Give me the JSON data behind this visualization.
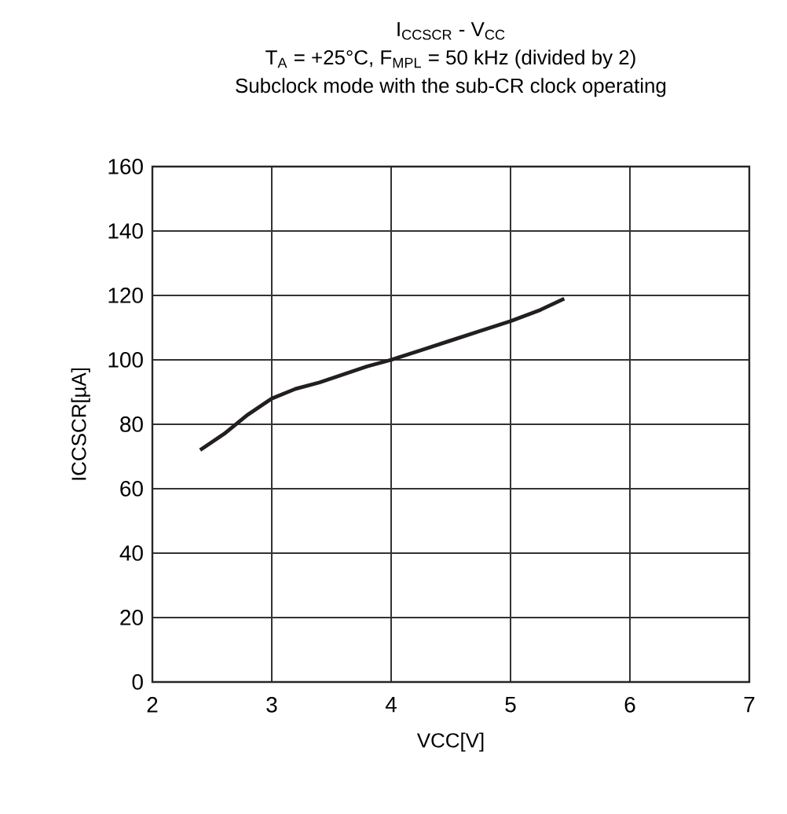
{
  "chart_data": {
    "type": "line",
    "title": "I$_{CCSCR}$ - V$_{CC}$",
    "subtitle": "T$_{A}$ = +25°C, F$_{MPL}$ = 50 kHz (divided by 2)",
    "annotations": [
      "Subclock mode with the sub-CR clock operating"
    ],
    "xlabel": "VCC[V]",
    "ylabel": "ICCSCR[µA]",
    "series": [
      {
        "color": "#231f20",
        "x": [
          2.4,
          2.6,
          2.8,
          3.0,
          3.2,
          3.4,
          3.6,
          3.8,
          4.0,
          4.25,
          4.5,
          4.75,
          5.0,
          5.25,
          5.45
        ],
        "values": [
          72,
          77,
          83,
          88,
          91,
          93,
          95.5,
          98,
          100,
          103,
          106,
          109,
          112,
          115.5,
          119
        ]
      }
    ],
    "xlim": [
      2,
      7
    ],
    "ylim": [
      0,
      160
    ],
    "xticks": [
      2,
      3,
      4,
      5,
      6,
      7
    ],
    "yticks": [
      0,
      20,
      40,
      60,
      80,
      100,
      120,
      140,
      160
    ],
    "grid": true
  }
}
